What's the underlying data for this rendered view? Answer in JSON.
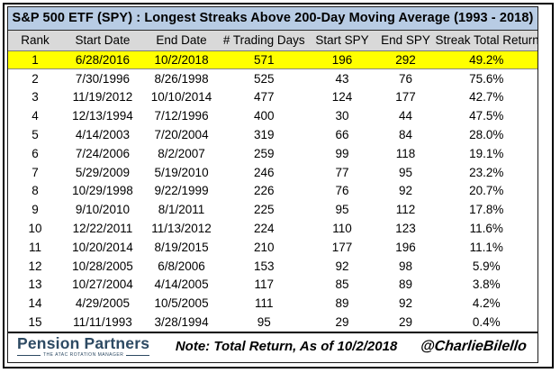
{
  "title": "S&P 500 ETF (SPY) : Longest Streaks Above 200-Day Moving Average (1993 - 2018)",
  "colors": {
    "title_bg": "#b8cce4",
    "header_bg": "#d9d9d9",
    "highlight": "#ffff00",
    "logo": "#2d4a63"
  },
  "chart_data": {
    "type": "table",
    "title": "S&P 500 ETF (SPY) : Longest Streaks Above 200-Day Moving Average (1993 - 2018)",
    "columns": [
      "Rank",
      "Start Date",
      "End Date",
      "# Trading Days",
      "Start SPY",
      "End SPY",
      "Streak Total Return"
    ],
    "rows": [
      [
        "1",
        "6/28/2016",
        "10/2/2018",
        "571",
        "196",
        "292",
        "49.2%"
      ],
      [
        "2",
        "7/30/1996",
        "8/26/1998",
        "525",
        "43",
        "76",
        "75.6%"
      ],
      [
        "3",
        "11/19/2012",
        "10/10/2014",
        "477",
        "124",
        "177",
        "42.7%"
      ],
      [
        "4",
        "12/13/1994",
        "7/12/1996",
        "400",
        "30",
        "44",
        "47.5%"
      ],
      [
        "5",
        "4/14/2003",
        "7/20/2004",
        "319",
        "66",
        "84",
        "28.0%"
      ],
      [
        "6",
        "7/24/2006",
        "8/2/2007",
        "259",
        "99",
        "118",
        "19.1%"
      ],
      [
        "7",
        "5/29/2009",
        "5/19/2010",
        "246",
        "77",
        "95",
        "23.2%"
      ],
      [
        "8",
        "10/29/1998",
        "9/22/1999",
        "226",
        "76",
        "92",
        "20.7%"
      ],
      [
        "9",
        "9/10/2010",
        "8/1/2011",
        "225",
        "95",
        "112",
        "17.8%"
      ],
      [
        "10",
        "12/22/2011",
        "11/13/2012",
        "224",
        "110",
        "123",
        "11.6%"
      ],
      [
        "11",
        "10/20/2014",
        "8/19/2015",
        "210",
        "177",
        "196",
        "11.1%"
      ],
      [
        "12",
        "10/28/2005",
        "6/8/2006",
        "153",
        "92",
        "98",
        "5.9%"
      ],
      [
        "13",
        "10/27/2004",
        "4/14/2005",
        "117",
        "85",
        "89",
        "3.8%"
      ],
      [
        "14",
        "4/29/2005",
        "10/5/2005",
        "111",
        "89",
        "92",
        "4.2%"
      ],
      [
        "15",
        "11/11/1993",
        "3/28/1994",
        "95",
        "29",
        "29",
        "0.4%"
      ]
    ],
    "highlighted_rank": "1",
    "legend_position": "none",
    "grid": false
  },
  "footer": {
    "logo_text": "Pension Partners",
    "logo_tagline": "THE ATAC ROTATION MANAGER",
    "note": "Note: Total Return, As of 10/2/2018",
    "handle": "@CharlieBilello"
  }
}
